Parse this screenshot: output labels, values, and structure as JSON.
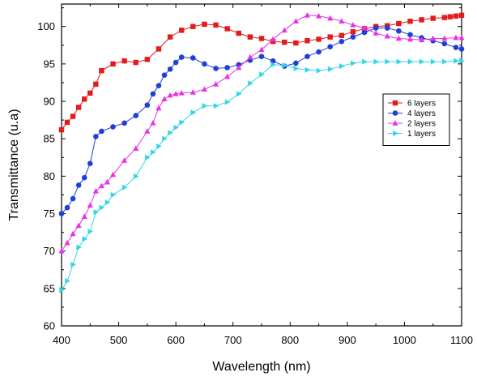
{
  "chart_data": {
    "type": "line",
    "title": "",
    "xlabel": "Wavelength (nm)",
    "ylabel": "Transmittance (u.a)",
    "xlim": [
      400,
      1100
    ],
    "ylim": [
      60,
      103
    ],
    "xticks": [
      400,
      500,
      600,
      700,
      800,
      900,
      1000,
      1100
    ],
    "yticks": [
      60,
      65,
      70,
      75,
      80,
      85,
      90,
      95,
      100
    ],
    "grid": false,
    "legend_position": "right",
    "series": [
      {
        "name": "6 layers",
        "color": "#e41a1c",
        "marker": "square",
        "x": [
          400,
          410,
          420,
          430,
          440,
          450,
          460,
          470,
          490,
          510,
          530,
          550,
          570,
          590,
          610,
          630,
          650,
          670,
          690,
          710,
          730,
          750,
          770,
          790,
          810,
          830,
          850,
          870,
          890,
          910,
          930,
          950,
          970,
          990,
          1010,
          1030,
          1050,
          1070,
          1080,
          1090,
          1100
        ],
        "y": [
          86.2,
          87.2,
          88.0,
          89.2,
          90.3,
          91.1,
          92.3,
          94.1,
          95.0,
          95.4,
          95.2,
          95.6,
          97.0,
          98.6,
          99.5,
          100.0,
          100.3,
          100.2,
          99.7,
          99.1,
          98.6,
          98.4,
          98.0,
          97.9,
          97.8,
          98.1,
          98.3,
          98.6,
          98.8,
          99.3,
          99.7,
          100.0,
          100.1,
          100.4,
          100.7,
          100.9,
          101.1,
          101.2,
          101.3,
          101.4,
          101.5
        ]
      },
      {
        "name": "4 layers",
        "color": "#1f3fd8",
        "marker": "circle",
        "x": [
          400,
          410,
          420,
          430,
          440,
          450,
          460,
          470,
          490,
          510,
          530,
          550,
          560,
          570,
          580,
          590,
          600,
          610,
          630,
          650,
          670,
          690,
          710,
          730,
          750,
          770,
          790,
          810,
          830,
          850,
          870,
          890,
          910,
          930,
          950,
          970,
          990,
          1010,
          1030,
          1050,
          1070,
          1090,
          1100
        ],
        "y": [
          75.0,
          75.8,
          77.0,
          78.8,
          79.8,
          81.7,
          85.3,
          86.0,
          86.6,
          87.1,
          88.1,
          89.5,
          91.0,
          92.1,
          93.5,
          94.3,
          95.2,
          95.9,
          95.8,
          95.0,
          94.4,
          94.5,
          94.9,
          95.5,
          96.0,
          95.4,
          94.7,
          95.1,
          96.0,
          96.6,
          97.3,
          98.0,
          98.6,
          99.2,
          99.8,
          99.8,
          99.4,
          98.9,
          98.5,
          98.1,
          97.7,
          97.2,
          97.0
        ]
      },
      {
        "name": "2 layers",
        "color": "#e633e6",
        "marker": "triangle-up",
        "x": [
          400,
          410,
          420,
          430,
          440,
          450,
          460,
          470,
          480,
          490,
          510,
          530,
          550,
          560,
          570,
          580,
          590,
          600,
          610,
          630,
          650,
          670,
          690,
          710,
          730,
          750,
          770,
          790,
          810,
          830,
          850,
          870,
          890,
          910,
          930,
          950,
          970,
          990,
          1010,
          1030,
          1050,
          1070,
          1090,
          1100
        ],
        "y": [
          70.0,
          71.1,
          72.3,
          73.4,
          74.6,
          76.1,
          78.0,
          78.7,
          79.2,
          80.2,
          82.1,
          83.7,
          86.0,
          87.1,
          89.1,
          90.3,
          90.8,
          91.0,
          91.1,
          91.2,
          91.6,
          92.3,
          93.3,
          94.5,
          95.9,
          96.9,
          98.3,
          99.5,
          100.7,
          101.5,
          101.4,
          101.1,
          100.7,
          100.2,
          99.8,
          99.1,
          98.7,
          98.4,
          98.3,
          98.2,
          98.4,
          98.4,
          98.5,
          98.5
        ]
      },
      {
        "name": "1 layers",
        "color": "#33d6e6",
        "marker": "triangle-right",
        "x": [
          400,
          410,
          420,
          430,
          440,
          450,
          460,
          470,
          480,
          490,
          510,
          530,
          550,
          560,
          570,
          580,
          590,
          600,
          610,
          630,
          650,
          670,
          690,
          710,
          730,
          750,
          770,
          790,
          810,
          830,
          850,
          870,
          890,
          910,
          930,
          950,
          970,
          990,
          1010,
          1030,
          1050,
          1070,
          1090,
          1100
        ],
        "y": [
          64.8,
          66.0,
          68.2,
          70.5,
          71.6,
          72.6,
          75.2,
          75.8,
          76.5,
          77.5,
          78.5,
          80.0,
          82.5,
          83.2,
          84.0,
          85.0,
          85.8,
          86.5,
          87.2,
          88.5,
          89.4,
          89.4,
          89.9,
          91.0,
          92.4,
          93.6,
          94.9,
          94.8,
          94.4,
          94.2,
          94.1,
          94.3,
          94.7,
          95.1,
          95.3,
          95.3,
          95.3,
          95.3,
          95.3,
          95.3,
          95.3,
          95.3,
          95.4,
          95.4
        ]
      }
    ]
  }
}
